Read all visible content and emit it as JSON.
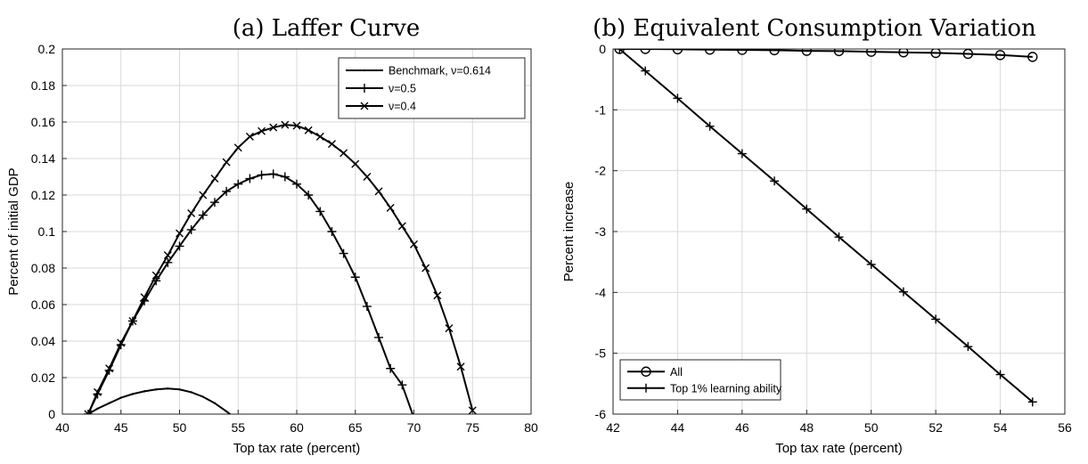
{
  "chart_data": [
    {
      "type": "line",
      "title": "(a) Laffer Curve",
      "xlabel": "Top tax rate (percent)",
      "ylabel": "Percent of initial GDP",
      "xlim": [
        40,
        80
      ],
      "ylim": [
        0,
        0.2
      ],
      "xticks": [
        "40",
        "45",
        "50",
        "55",
        "60",
        "65",
        "70",
        "75",
        "80"
      ],
      "yticks": [
        "0",
        "0.02",
        "0.04",
        "0.06",
        "0.08",
        "0.1",
        "0.12",
        "0.14",
        "0.16",
        "0.18",
        "0.2"
      ],
      "grid": true,
      "legend": "top-right",
      "series": [
        {
          "name": "Benchmark, ν=0.614",
          "marker": "point",
          "x": [
            42.2,
            43,
            44,
            45,
            46,
            47,
            48,
            49,
            50,
            51,
            52,
            53,
            54,
            54.5
          ],
          "y": [
            0,
            0.003,
            0.006,
            0.009,
            0.011,
            0.0125,
            0.0135,
            0.014,
            0.0135,
            0.012,
            0.0095,
            0.006,
            0.0015,
            -0.001
          ]
        },
        {
          "name": "ν=0.5",
          "marker": "plus",
          "x": [
            42.2,
            43,
            44,
            45,
            46,
            47,
            48,
            49,
            50,
            51,
            52,
            53,
            54,
            55,
            56,
            57,
            58,
            59,
            60,
            61,
            62,
            63,
            64,
            65,
            66,
            67,
            68,
            69,
            70,
            70.7
          ],
          "y": [
            0,
            0.011,
            0.024,
            0.038,
            0.051,
            0.062,
            0.073,
            0.083,
            0.092,
            0.101,
            0.109,
            0.116,
            0.122,
            0.126,
            0.129,
            0.131,
            0.1315,
            0.13,
            0.126,
            0.12,
            0.111,
            0.1,
            0.088,
            0.075,
            0.059,
            0.042,
            0.025,
            0.016,
            -0.002,
            -0.01
          ]
        },
        {
          "name": "ν=0.4",
          "marker": "cross",
          "x": [
            42.2,
            43,
            44,
            45,
            46,
            47,
            48,
            49,
            50,
            51,
            52,
            53,
            54,
            55,
            56,
            57,
            58,
            59,
            60,
            61,
            62,
            63,
            64,
            65,
            66,
            67,
            68,
            69,
            70,
            71,
            72,
            73,
            74,
            75
          ],
          "y": [
            0,
            0.012,
            0.025,
            0.039,
            0.051,
            0.064,
            0.076,
            0.087,
            0.099,
            0.11,
            0.12,
            0.129,
            0.138,
            0.146,
            0.152,
            0.155,
            0.157,
            0.1585,
            0.158,
            0.1555,
            0.152,
            0.148,
            0.143,
            0.137,
            0.13,
            0.122,
            0.113,
            0.103,
            0.093,
            0.08,
            0.065,
            0.047,
            0.026,
            0.002
          ]
        }
      ]
    },
    {
      "type": "line",
      "title": "(b) Equivalent Consumption Variation",
      "xlabel": "Top tax rate (percent)",
      "ylabel": "Percent increase",
      "xlim": [
        42,
        56
      ],
      "ylim": [
        -6,
        0
      ],
      "xticks": [
        "42",
        "44",
        "46",
        "48",
        "50",
        "52",
        "54",
        "56"
      ],
      "yticks": [
        "-6",
        "-5",
        "-4",
        "-3",
        "-2",
        "-1",
        "0"
      ],
      "grid": true,
      "legend": "bottom-left",
      "series": [
        {
          "name": "All",
          "marker": "circle",
          "x": [
            42.2,
            43,
            44,
            45,
            46,
            47,
            48,
            49,
            50,
            51,
            52,
            53,
            54,
            55
          ],
          "y": [
            0,
            0,
            -0.005,
            -0.01,
            -0.015,
            -0.02,
            -0.03,
            -0.035,
            -0.045,
            -0.055,
            -0.065,
            -0.08,
            -0.1,
            -0.13
          ]
        },
        {
          "name": "Top 1% learning ability",
          "marker": "plus",
          "x": [
            42.2,
            43,
            44,
            45,
            46,
            47,
            48,
            49,
            50,
            51,
            52,
            53,
            54,
            55
          ],
          "y": [
            0,
            -0.36,
            -0.81,
            -1.27,
            -1.72,
            -2.17,
            -2.63,
            -3.09,
            -3.54,
            -3.99,
            -4.44,
            -4.89,
            -5.35,
            -5.8
          ]
        }
      ]
    }
  ]
}
